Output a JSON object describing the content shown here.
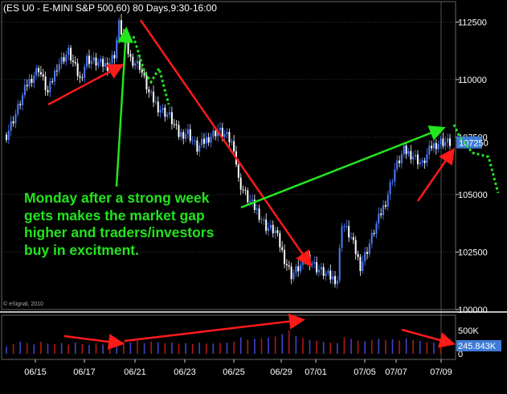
{
  "title": "(ES U0 - E-MINI S&P 500,60) 80 Days,9:30-16:00",
  "copyright": "© eSignal, 2010",
  "annotation_lines": [
    "Monday after a strong week",
    "gets makes the market gap",
    "higher and traders/investors",
    "buy in excitment."
  ],
  "colors": {
    "background": "#000000",
    "up_candle": "#4d7dff",
    "down_candle": "#ffffff",
    "volume_up": "#4343c8",
    "volume_down": "#b01818",
    "arrow_red": "#ff1a1a",
    "arrow_green": "#22e51d",
    "price_badge": "#3d7bd6",
    "grid": "#555555"
  },
  "chart_data": {
    "type": "candlestick",
    "price_axis": {
      "ticks": [
        100000,
        102500,
        105000,
        107500,
        110000,
        112500
      ],
      "tick_labels": [
        "100000",
        "102500",
        "105000",
        "107500",
        "110000",
        "112500"
      ],
      "ylim": [
        100000,
        113300
      ]
    },
    "current_price_label": "107250",
    "current_price": 107250,
    "volume_axis": {
      "ticks": [
        0,
        500
      ],
      "tick_labels": [
        "0",
        "500K"
      ],
      "current_volume_label": "245.843K"
    },
    "x_tick_labels": [
      "06/15",
      "06/17",
      "06/21",
      "06/23",
      "06/25",
      "06/29",
      "07/01",
      "07/05",
      "07/07",
      "07/09"
    ],
    "price_path": [
      [
        0,
        107600
      ],
      [
        4,
        108500
      ],
      [
        9,
        109800
      ],
      [
        14,
        110500
      ],
      [
        18,
        109400
      ],
      [
        22,
        110600
      ],
      [
        27,
        111200
      ],
      [
        32,
        110000
      ],
      [
        35,
        110900
      ],
      [
        40,
        110700
      ],
      [
        44,
        110600
      ],
      [
        47,
        111100
      ],
      [
        49,
        112400
      ],
      [
        51,
        111800
      ],
      [
        54,
        110900
      ],
      [
        58,
        110600
      ],
      [
        62,
        109400
      ],
      [
        66,
        108800
      ],
      [
        71,
        108400
      ],
      [
        75,
        107600
      ],
      [
        79,
        107700
      ],
      [
        83,
        107000
      ],
      [
        87,
        107400
      ],
      [
        92,
        107800
      ],
      [
        96,
        107500
      ],
      [
        99,
        107100
      ],
      [
        101,
        105600
      ],
      [
        105,
        104800
      ],
      [
        109,
        104300
      ],
      [
        113,
        103600
      ],
      [
        117,
        103400
      ],
      [
        121,
        102200
      ],
      [
        124,
        101500
      ],
      [
        128,
        101900
      ],
      [
        131,
        102300
      ],
      [
        135,
        101800
      ],
      [
        138,
        101600
      ],
      [
        141,
        101400
      ],
      [
        144,
        101300
      ],
      [
        146,
        103800
      ],
      [
        150,
        103100
      ],
      [
        154,
        101900
      ],
      [
        157,
        102600
      ],
      [
        161,
        103700
      ],
      [
        165,
        104700
      ],
      [
        169,
        106100
      ],
      [
        173,
        106900
      ],
      [
        177,
        106700
      ],
      [
        181,
        106300
      ],
      [
        185,
        107100
      ],
      [
        189,
        107300
      ],
      [
        193,
        107250
      ]
    ],
    "volume": [
      [
        0,
        160
      ],
      [
        3,
        210
      ],
      [
        6,
        260
      ],
      [
        9,
        230
      ],
      [
        12,
        200
      ],
      [
        15,
        260
      ],
      [
        18,
        220
      ],
      [
        21,
        210
      ],
      [
        24,
        230
      ],
      [
        27,
        200
      ],
      [
        30,
        240
      ],
      [
        33,
        210
      ],
      [
        36,
        190
      ],
      [
        39,
        220
      ],
      [
        42,
        200
      ],
      [
        45,
        230
      ],
      [
        48,
        200
      ],
      [
        51,
        260
      ],
      [
        54,
        240
      ],
      [
        57,
        280
      ],
      [
        60,
        230
      ],
      [
        63,
        260
      ],
      [
        66,
        250
      ],
      [
        69,
        230
      ],
      [
        72,
        240
      ],
      [
        75,
        220
      ],
      [
        78,
        230
      ],
      [
        81,
        210
      ],
      [
        84,
        240
      ],
      [
        87,
        220
      ],
      [
        90,
        220
      ],
      [
        93,
        230
      ],
      [
        96,
        240
      ],
      [
        99,
        260
      ],
      [
        102,
        350
      ],
      [
        105,
        300
      ],
      [
        108,
        320
      ],
      [
        111,
        330
      ],
      [
        114,
        350
      ],
      [
        117,
        370
      ],
      [
        120,
        420
      ],
      [
        123,
        500
      ],
      [
        126,
        380
      ],
      [
        129,
        340
      ],
      [
        132,
        300
      ],
      [
        135,
        280
      ],
      [
        138,
        260
      ],
      [
        141,
        240
      ],
      [
        144,
        230
      ],
      [
        147,
        350
      ],
      [
        150,
        320
      ],
      [
        153,
        280
      ],
      [
        156,
        270
      ],
      [
        159,
        300
      ],
      [
        162,
        320
      ],
      [
        165,
        300
      ],
      [
        168,
        310
      ],
      [
        171,
        290
      ],
      [
        174,
        330
      ],
      [
        177,
        300
      ],
      [
        180,
        280
      ],
      [
        183,
        250
      ],
      [
        186,
        240
      ],
      [
        189,
        246
      ]
    ]
  }
}
